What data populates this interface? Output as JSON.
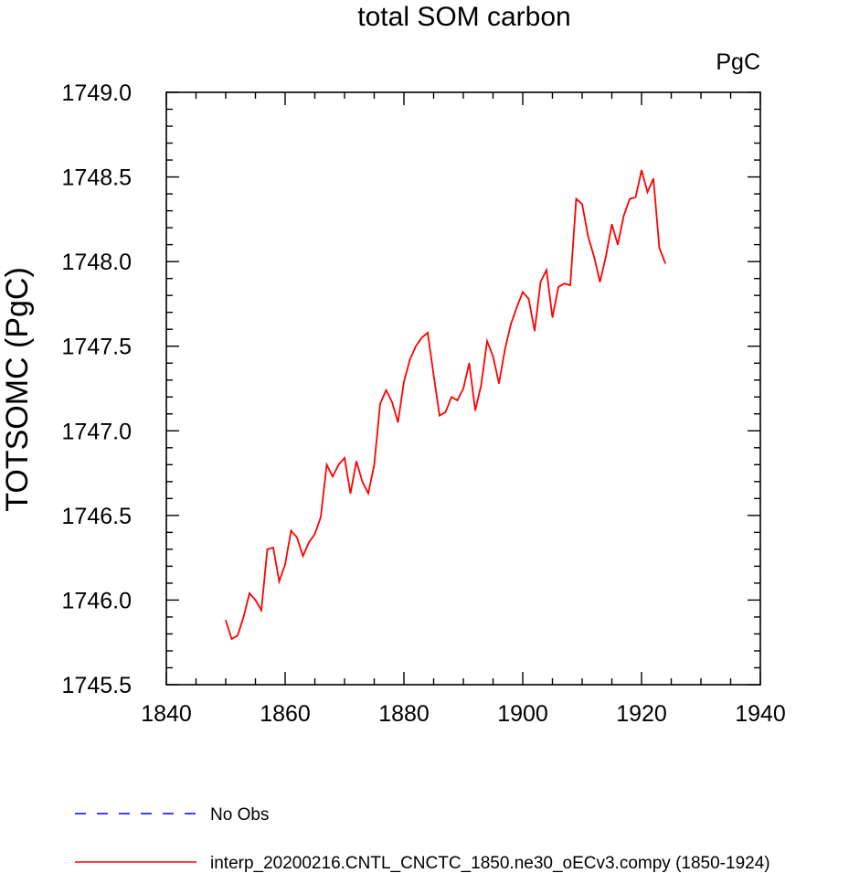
{
  "chart_data": {
    "type": "line",
    "title": "total SOM carbon",
    "units": "PgC",
    "ylabel": "TOTSOMC  (PgC)",
    "xlabel": "",
    "xlim": [
      1840,
      1940
    ],
    "ylim": [
      1745.5,
      1749.0
    ],
    "xticks": [
      1840,
      1860,
      1880,
      1900,
      1920,
      1940
    ],
    "xtick_labels": [
      "1840",
      "1860",
      "1880",
      "1900",
      "1920",
      "1940"
    ],
    "yticks": [
      1745.5,
      1746.0,
      1746.5,
      1747.0,
      1747.5,
      1748.0,
      1748.5,
      1749.0
    ],
    "ytick_labels": [
      "1745.5",
      "1746.0",
      "1746.5",
      "1747.0",
      "1747.5",
      "1748.0",
      "1748.5",
      "1749.0"
    ],
    "grid": false,
    "legend_position": "bottom",
    "series": [
      {
        "name": "No Obs",
        "color": "#0000ff",
        "dash": "dashed",
        "x": [],
        "y": []
      },
      {
        "name": "interp_20200216.CNTL_CNCTC_1850.ne30_oECv3.compy (1850-1924)",
        "color": "#ff0000",
        "dash": "solid",
        "x": [
          1850,
          1851,
          1852,
          1853,
          1854,
          1855,
          1856,
          1857,
          1858,
          1859,
          1860,
          1861,
          1862,
          1863,
          1864,
          1865,
          1866,
          1867,
          1868,
          1869,
          1870,
          1871,
          1872,
          1873,
          1874,
          1875,
          1876,
          1877,
          1878,
          1879,
          1880,
          1881,
          1882,
          1883,
          1884,
          1885,
          1886,
          1887,
          1888,
          1889,
          1890,
          1891,
          1892,
          1893,
          1894,
          1895,
          1896,
          1897,
          1898,
          1899,
          1900,
          1901,
          1902,
          1903,
          1904,
          1905,
          1906,
          1907,
          1908,
          1909,
          1910,
          1911,
          1912,
          1913,
          1914,
          1915,
          1916,
          1917,
          1918,
          1919,
          1920,
          1921,
          1922,
          1923,
          1924
        ],
        "y": [
          1745.88,
          1745.77,
          1745.79,
          1745.9,
          1746.04,
          1746.0,
          1745.94,
          1746.3,
          1746.31,
          1746.11,
          1746.21,
          1746.41,
          1746.37,
          1746.26,
          1746.34,
          1746.39,
          1746.49,
          1746.8,
          1746.73,
          1746.8,
          1746.84,
          1746.63,
          1746.82,
          1746.7,
          1746.63,
          1746.8,
          1747.16,
          1747.24,
          1747.17,
          1747.05,
          1747.29,
          1747.42,
          1747.5,
          1747.55,
          1747.58,
          1747.33,
          1747.09,
          1747.11,
          1747.2,
          1747.18,
          1747.25,
          1747.4,
          1747.12,
          1747.27,
          1747.53,
          1747.44,
          1747.28,
          1747.48,
          1747.63,
          1747.73,
          1747.82,
          1747.78,
          1747.59,
          1747.88,
          1747.95,
          1747.67,
          1747.85,
          1747.87,
          1747.86,
          1748.37,
          1748.34,
          1748.15,
          1748.03,
          1747.88,
          1748.03,
          1748.22,
          1748.1,
          1748.27,
          1748.37,
          1748.38,
          1748.54,
          1748.41,
          1748.49,
          1748.08,
          1747.99
        ]
      }
    ]
  }
}
